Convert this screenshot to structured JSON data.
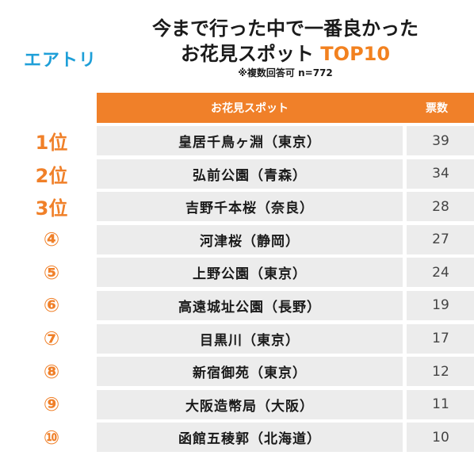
{
  "logo": "エアトリ",
  "title": {
    "line1": "今まで行った中で一番良かった",
    "line2_prefix": "お花見スポット",
    "line2_accent": "TOP10",
    "note": "※複数回答可 n=772"
  },
  "table": {
    "header_name": "お花見スポット",
    "header_votes": "票数"
  },
  "ranks": [
    "1位",
    "2位",
    "3位",
    "④",
    "⑤",
    "⑥",
    "⑦",
    "⑧",
    "⑨",
    "⑩"
  ],
  "colors": {
    "accent": "#f08029",
    "logo": "#1e9fd8",
    "row_bg": "#ececec"
  },
  "chart_data": {
    "type": "table",
    "title": "今まで行った中で一番良かったお花見スポット TOP10",
    "subtitle": "※複数回答可 n=772",
    "columns": [
      "お花見スポット",
      "票数"
    ],
    "categories": [
      "皇居千鳥ヶ淵（東京）",
      "弘前公園（青森）",
      "吉野千本桜（奈良）",
      "河津桜（静岡）",
      "上野公園（東京）",
      "高遠城址公園（長野）",
      "目黒川（東京）",
      "新宿御苑（東京）",
      "大阪造幣局（大阪）",
      "函館五稜郭（北海道）"
    ],
    "values": [
      39,
      34,
      28,
      27,
      24,
      19,
      17,
      12,
      11,
      10
    ]
  }
}
